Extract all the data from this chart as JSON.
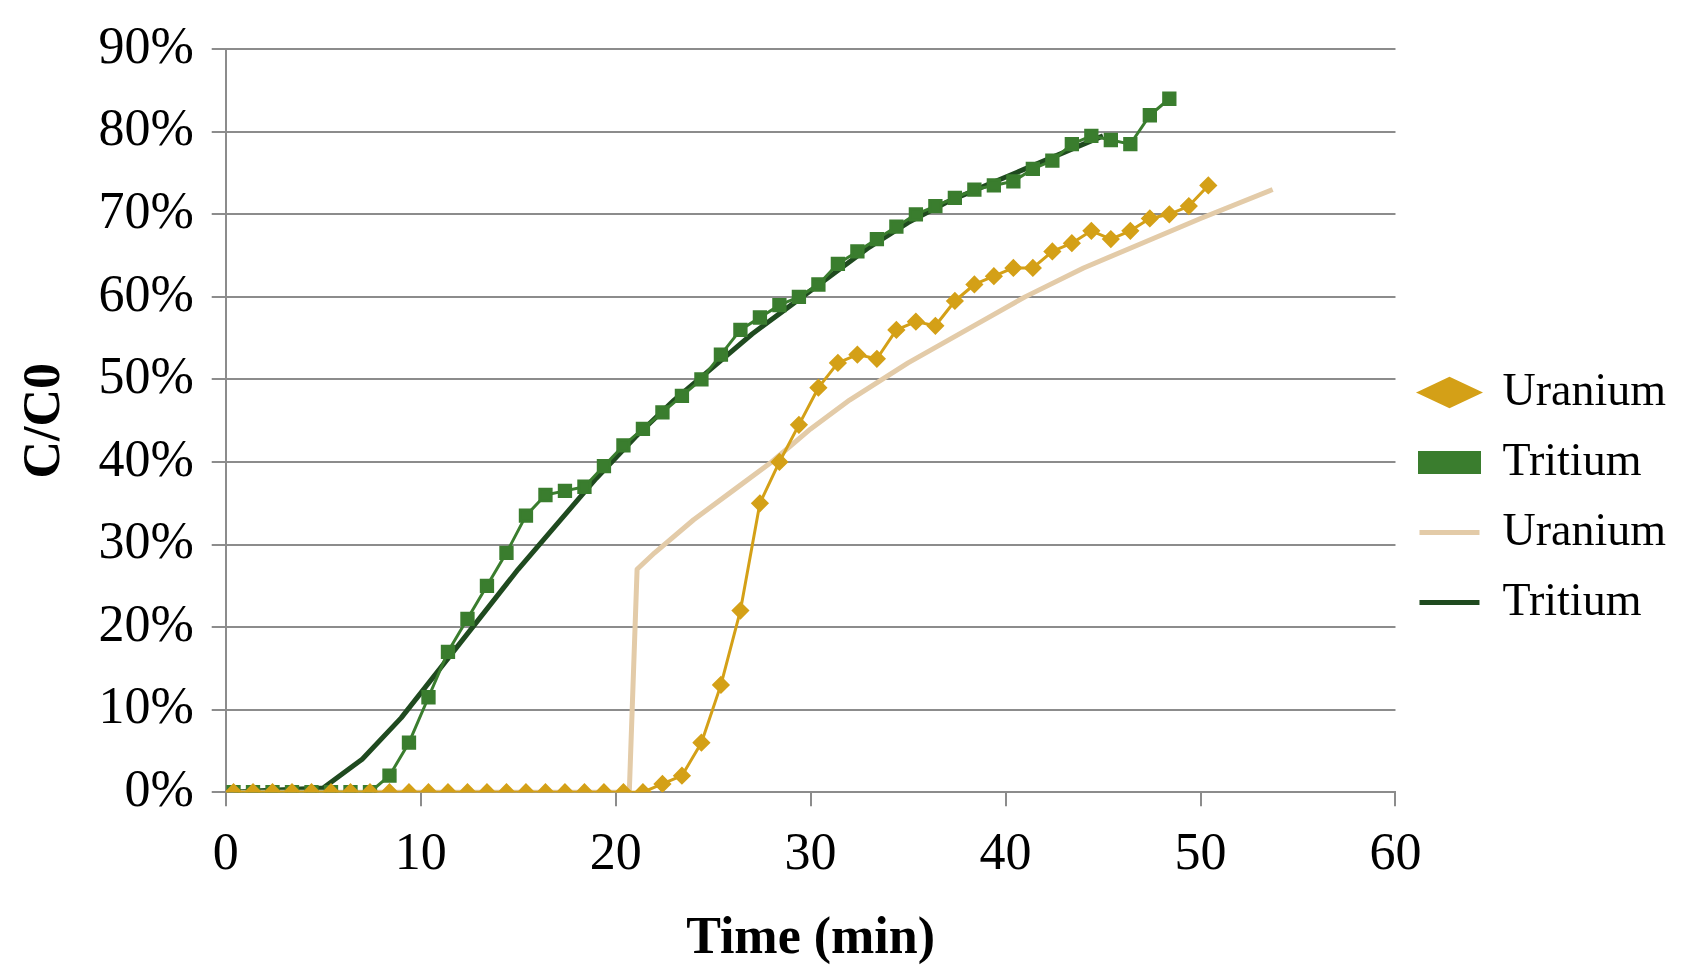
{
  "chart_data": {
    "type": "line",
    "xlabel": "Time (min)",
    "ylabel": "C/C0",
    "xlim": [
      0,
      60
    ],
    "xticks": [
      0,
      10,
      20,
      30,
      40,
      50,
      60
    ],
    "ylim": [
      0,
      90
    ],
    "yticks": [
      {
        "value": 0,
        "label": "0%"
      },
      {
        "value": 10,
        "label": "10%"
      },
      {
        "value": 20,
        "label": "20%"
      },
      {
        "value": 30,
        "label": "30%"
      },
      {
        "value": 40,
        "label": "40%"
      },
      {
        "value": 50,
        "label": "50%"
      },
      {
        "value": 60,
        "label": "60%"
      },
      {
        "value": 70,
        "label": "70%"
      },
      {
        "value": 80,
        "label": "80%"
      },
      {
        "value": 90,
        "label": "90%"
      }
    ],
    "grid": "y",
    "legend": "right",
    "series": [
      {
        "name": "Uranium",
        "color": "#d4a017",
        "marker": "diamond",
        "x": [
          0.4,
          1.4,
          2.4,
          3.4,
          4.4,
          5.4,
          6.4,
          7.4,
          8.4,
          9.4,
          10.4,
          11.4,
          12.4,
          13.4,
          14.4,
          15.4,
          16.4,
          17.4,
          18.4,
          19.4,
          20.4,
          21.4,
          22.4,
          23.4,
          24.4,
          25.4,
          26.4,
          27.4,
          28.4,
          29.4,
          30.4,
          31.4,
          32.4,
          33.4,
          34.4,
          35.4,
          36.4,
          37.4,
          38.4,
          39.4,
          40.4,
          41.4,
          42.4,
          43.4,
          44.4,
          45.4,
          46.4,
          47.4,
          48.4,
          49.4,
          50.4
        ],
        "values": [
          0,
          0,
          0,
          0,
          0,
          0,
          0,
          0,
          0,
          0,
          0,
          0,
          0,
          0,
          0,
          0,
          0,
          0,
          0,
          0,
          0,
          0,
          1,
          2,
          6,
          13,
          22,
          35,
          40,
          44.5,
          49,
          52,
          53,
          52.5,
          56,
          57,
          56.5,
          59.5,
          61.5,
          62.5,
          63.5,
          63.5,
          65.5,
          66.5,
          68,
          67,
          68,
          69.5,
          70,
          71,
          73.5
        ]
      },
      {
        "name": "Tritium",
        "color": "#3a7d2e",
        "marker": "square",
        "x": [
          0.4,
          1.4,
          2.4,
          3.4,
          4.4,
          5.4,
          6.4,
          7.4,
          8.4,
          9.4,
          10.4,
          11.4,
          12.4,
          13.4,
          14.4,
          15.4,
          16.4,
          17.4,
          18.4,
          19.4,
          20.4,
          21.4,
          22.4,
          23.4,
          24.4,
          25.4,
          26.4,
          27.4,
          28.4,
          29.4,
          30.4,
          31.4,
          32.4,
          33.4,
          34.4,
          35.4,
          36.4,
          37.4,
          38.4,
          39.4,
          40.4,
          41.4,
          42.4,
          43.4,
          44.4,
          45.4,
          46.4,
          47.4,
          48.4
        ],
        "values": [
          0,
          0,
          0,
          0,
          0,
          0,
          0,
          0,
          2,
          6,
          11.5,
          17,
          21,
          25,
          29,
          33.5,
          36,
          36.5,
          37,
          39.5,
          42,
          44,
          46,
          48,
          50,
          53,
          56,
          57.5,
          59,
          60,
          61.5,
          64,
          65.5,
          67,
          68.5,
          70,
          71,
          72,
          73,
          73.5,
          74,
          75.5,
          76.5,
          78.5,
          79.5,
          79,
          78.5,
          82,
          84
        ]
      },
      {
        "name": "Uranium",
        "color": "#e3cba8",
        "marker": "none",
        "x": [
          0,
          20.7,
          21.1,
          22,
          24,
          26,
          28,
          30,
          32,
          35,
          38,
          41,
          44,
          47,
          50,
          53.7
        ],
        "values": [
          0,
          0,
          27,
          29,
          33,
          36.5,
          40,
          44,
          47.5,
          52,
          56,
          60,
          63.5,
          66.5,
          69.5,
          73
        ]
      },
      {
        "name": "Tritium",
        "color": "#1f4a1f",
        "marker": "none",
        "x": [
          0,
          5,
          7,
          9,
          11,
          13,
          15,
          17,
          19,
          21,
          23,
          25,
          27,
          29,
          31,
          33,
          35,
          37,
          39,
          41,
          43,
          45
        ],
        "values": [
          0,
          0.5,
          4,
          9,
          15,
          21,
          27,
          32.5,
          38,
          43,
          47.5,
          51.5,
          55.5,
          59,
          62.5,
          66,
          69,
          71.5,
          73.5,
          75.5,
          77.5,
          79.5
        ]
      }
    ]
  }
}
